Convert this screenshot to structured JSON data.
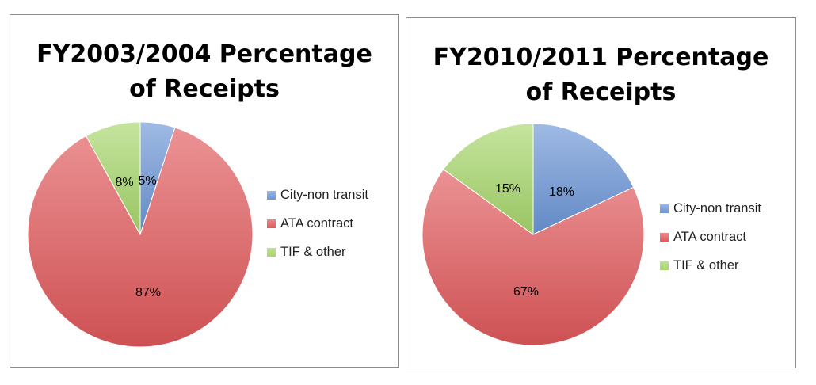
{
  "chart_data": [
    {
      "type": "pie",
      "title_lines": [
        "FY2003/2004 Percentage",
        "of Receipts"
      ],
      "categories": [
        "City-non transit",
        "ATA contract",
        "TIF & other"
      ],
      "values": [
        5,
        87,
        8
      ],
      "labels": [
        "5%",
        "87%",
        "8%"
      ],
      "colors": [
        "#6b95d6",
        "#e0585a",
        "#a6d66a"
      ],
      "legend_position": "right"
    },
    {
      "type": "pie",
      "title_lines": [
        "FY2010/2011 Percentage",
        "of Receipts"
      ],
      "categories": [
        "City-non transit",
        "ATA contract",
        "TIF & other"
      ],
      "values": [
        18,
        67,
        15
      ],
      "labels": [
        "18%",
        "67%",
        "15%"
      ],
      "colors": [
        "#6b95d6",
        "#e0585a",
        "#a6d66a"
      ],
      "legend_position": "right"
    }
  ]
}
